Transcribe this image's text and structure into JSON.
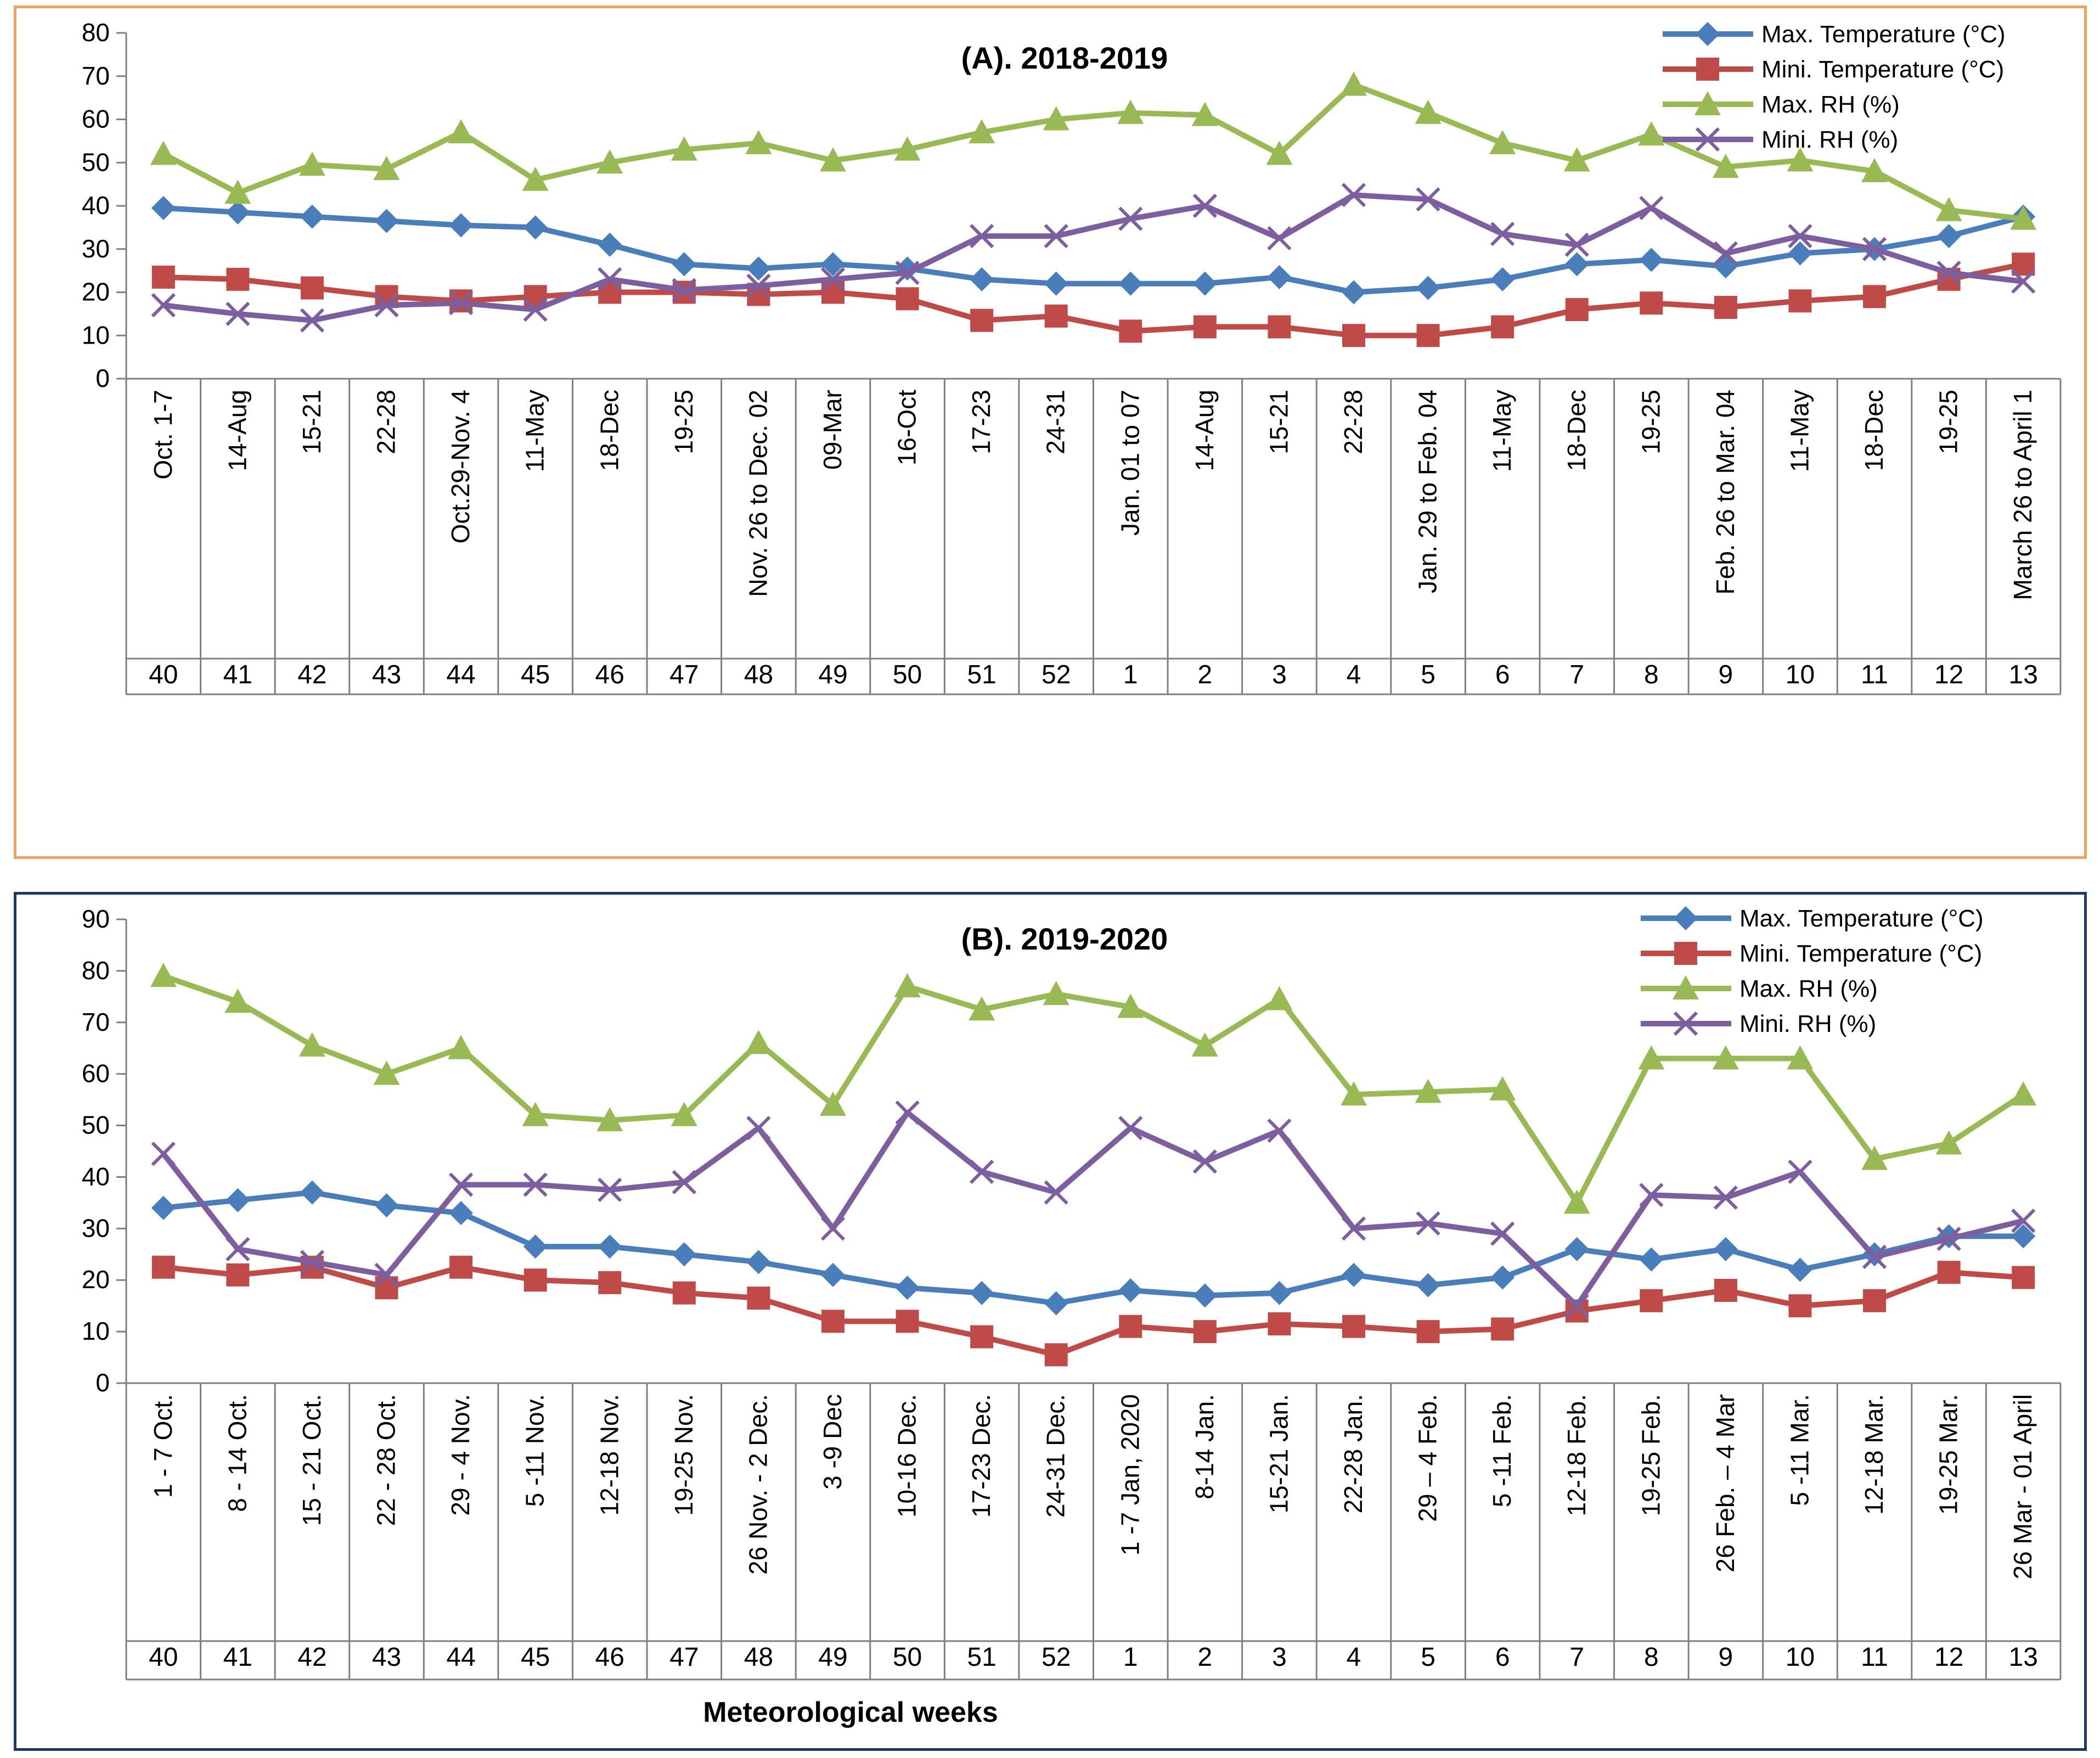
{
  "colors": {
    "max_temp": "#4a7ebb",
    "min_temp": "#be4b48",
    "max_rh": "#98b954",
    "min_rh": "#7d5fa0",
    "grid": "#7f7f7f"
  },
  "xaxis_title": "Meteorological weeks",
  "chart_data": [
    {
      "type": "line",
      "title": "(A). 2018-2019",
      "ylim": [
        0,
        80
      ],
      "yticks": [
        0,
        10,
        20,
        30,
        40,
        50,
        60,
        70,
        80
      ],
      "categories": [
        "Oct. 1-7",
        "14-Aug",
        "15-21",
        "22-28",
        "Oct.29-Nov. 4",
        "11-May",
        "18-Dec",
        "19-25",
        "Nov. 26 to Dec. 02",
        "09-Mar",
        "16-Oct",
        "17-23",
        "24-31",
        "Jan. 01 to 07",
        "14-Aug",
        "15-21",
        "22-28",
        "Jan. 29 to Feb. 04",
        "11-May",
        "18-Dec",
        "19-25",
        "Feb. 26 to Mar. 04",
        "11-May",
        "18-Dec",
        "19-25",
        "March 26 to April 1"
      ],
      "weeks": [
        "40",
        "41",
        "42",
        "43",
        "44",
        "45",
        "46",
        "47",
        "48",
        "49",
        "50",
        "51",
        "52",
        "1",
        "2",
        "3",
        "4",
        "5",
        "6",
        "7",
        "8",
        "9",
        "10",
        "11",
        "12",
        "13"
      ],
      "series": [
        {
          "name": "Max. Temperature (°C)",
          "marker": "diamond",
          "values": [
            39.5,
            38.5,
            37.5,
            36.5,
            35.5,
            35,
            31,
            26.5,
            25.5,
            26.5,
            25.5,
            23,
            22,
            22,
            22,
            23.5,
            20,
            21,
            23,
            26.5,
            27.5,
            26,
            29,
            30,
            33,
            37.5
          ]
        },
        {
          "name": "Mini. Temperature (°C)",
          "marker": "square",
          "values": [
            23.5,
            23,
            21,
            19,
            18,
            19,
            20,
            20,
            19.5,
            20,
            18.5,
            13.5,
            14.5,
            11,
            12,
            12,
            10,
            10,
            12,
            16,
            17.5,
            16.5,
            18,
            19,
            23,
            26.5
          ]
        },
        {
          "name": "Max. RH (%)",
          "marker": "triangle",
          "values": [
            52,
            43,
            49.5,
            48.5,
            57,
            46,
            50,
            53,
            54.5,
            50.5,
            53,
            57,
            60,
            61.5,
            61,
            52,
            68,
            61.5,
            54.5,
            50.5,
            56.5,
            49,
            50.5,
            48,
            39,
            37
          ]
        },
        {
          "name": "Mini. RH (%)",
          "marker": "x",
          "values": [
            17,
            15,
            13.5,
            17,
            17.5,
            16,
            23,
            20.5,
            21.5,
            23,
            24.5,
            33,
            33,
            37,
            40,
            32.5,
            42.5,
            41.5,
            33.5,
            31,
            39.5,
            29,
            33,
            30,
            24.5,
            22.5
          ]
        }
      ]
    },
    {
      "type": "line",
      "title": "(B). 2019-2020",
      "ylim": [
        0,
        90
      ],
      "yticks": [
        0,
        10,
        20,
        30,
        40,
        50,
        60,
        70,
        80,
        90
      ],
      "categories": [
        "1 - 7 Oct.",
        "8 - 14 Oct.",
        "15 - 21 Oct.",
        "22 - 28 Oct.",
        "29 - 4 Nov.",
        "5 -11 Nov.",
        "12-18 Nov.",
        "19-25 Nov.",
        "26 Nov. - 2 Dec.",
        "3 -9 Dec",
        "10-16 Dec.",
        "17-23 Dec.",
        "24-31 Dec.",
        "1 -7 Jan, 2020",
        "8-14 Jan.",
        "15-21 Jan.",
        "22-28 Jan.",
        "29 – 4 Feb.",
        "5 -11 Feb.",
        "12-18 Feb.",
        "19-25 Feb.",
        "26 Feb. – 4 Mar",
        "5 -11 Mar.",
        "12-18 Mar.",
        "19-25 Mar.",
        "26 Mar - 01 April"
      ],
      "weeks": [
        "40",
        "41",
        "42",
        "43",
        "44",
        "45",
        "46",
        "47",
        "48",
        "49",
        "50",
        "51",
        "52",
        "1",
        "2",
        "3",
        "4",
        "5",
        "6",
        "7",
        "8",
        "9",
        "10",
        "11",
        "12",
        "13"
      ],
      "series": [
        {
          "name": "Max. Temperature (°C)",
          "marker": "diamond",
          "values": [
            34,
            35.5,
            37,
            34.5,
            33,
            26.5,
            26.5,
            25,
            23.5,
            21,
            18.5,
            17.5,
            15.5,
            18,
            17,
            17.5,
            21,
            19,
            20.5,
            26,
            24,
            26,
            22,
            25,
            28.5,
            28.5
          ]
        },
        {
          "name": "Mini. Temperature (°C)",
          "marker": "square",
          "values": [
            22.5,
            21,
            22.5,
            18.5,
            22.5,
            20,
            19.5,
            17.5,
            16.5,
            12,
            12,
            9,
            5.5,
            11,
            10,
            11.5,
            11,
            10,
            10.5,
            14,
            16,
            18,
            15,
            16,
            21.5,
            20.5
          ]
        },
        {
          "name": "Max. RH (%)",
          "marker": "triangle",
          "values": [
            79,
            74,
            65.5,
            60,
            65,
            52,
            51,
            52,
            66,
            54,
            77,
            72.5,
            75.5,
            73,
            65.5,
            74.5,
            56,
            56.5,
            57,
            35,
            63,
            63,
            63,
            43.5,
            46.5,
            56
          ]
        },
        {
          "name": "Mini. RH (%)",
          "marker": "x",
          "values": [
            44.5,
            26,
            23.5,
            21,
            38.5,
            38.5,
            37.5,
            39,
            49.5,
            30,
            52.5,
            41,
            37,
            49.5,
            43,
            49,
            30,
            31,
            29,
            15,
            36.5,
            36,
            41,
            24.5,
            28,
            31.5
          ]
        }
      ]
    }
  ]
}
